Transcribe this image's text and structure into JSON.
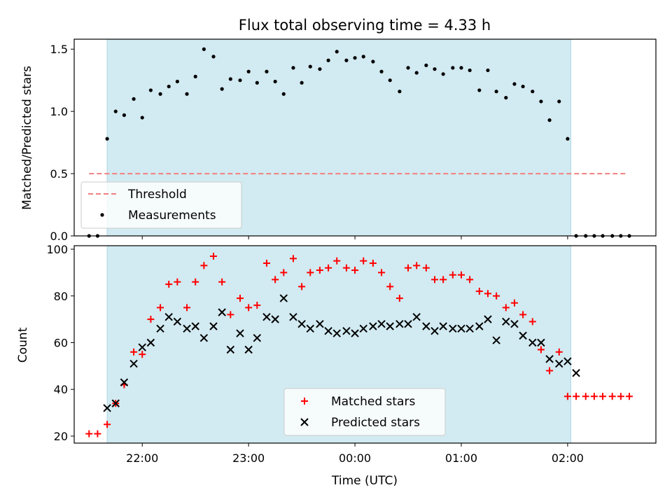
{
  "chart_data": [
    {
      "type": "scatter",
      "title": "Flux total observing time = 4.33 h",
      "xlabel": "",
      "ylabel": "Matched/Predicted stars",
      "ylim": [
        0,
        1.58
      ],
      "yticks": [
        0.0,
        0.5,
        1.0,
        1.5
      ],
      "ytick_labels": [
        "0.0",
        "0.5",
        "1.0",
        "1.5"
      ],
      "xlim": [
        -2.64,
        2.83
      ],
      "xticks": [
        -2,
        -1,
        0,
        1,
        2
      ],
      "grid": false,
      "legend_position": "lower-left",
      "observing_window": [
        -2.33,
        2.03
      ],
      "observing_window_color": "#add8e6",
      "threshold": {
        "name": "Threshold",
        "y": 0.5,
        "x_range": [
          -2.5,
          2.55
        ],
        "color": "#f08080",
        "style": "dashed"
      },
      "series": [
        {
          "name": "Measurements",
          "color": "#000000",
          "x": [
            -2.5,
            -2.42,
            -2.33,
            -2.25,
            -2.17,
            -2.08,
            -2.0,
            -1.92,
            -1.83,
            -1.75,
            -1.67,
            -1.58,
            -1.5,
            -1.42,
            -1.33,
            -1.25,
            -1.17,
            -1.08,
            -1.0,
            -0.92,
            -0.83,
            -0.75,
            -0.67,
            -0.58,
            -0.5,
            -0.42,
            -0.33,
            -0.25,
            -0.17,
            -0.08,
            0.0,
            0.08,
            0.17,
            0.25,
            0.33,
            0.42,
            0.5,
            0.58,
            0.67,
            0.75,
            0.83,
            0.92,
            1.0,
            1.08,
            1.17,
            1.25,
            1.33,
            1.42,
            1.5,
            1.58,
            1.67,
            1.75,
            1.83,
            1.92,
            2.0,
            2.08,
            2.17,
            2.25,
            2.33,
            2.42,
            2.5,
            2.58
          ],
          "y": [
            0.0,
            0.0,
            0.78,
            1.0,
            0.97,
            1.1,
            0.95,
            1.17,
            1.14,
            1.2,
            1.24,
            1.14,
            1.28,
            1.5,
            1.44,
            1.18,
            1.26,
            1.25,
            1.32,
            1.23,
            1.32,
            1.24,
            1.14,
            1.35,
            1.23,
            1.36,
            1.34,
            1.41,
            1.48,
            1.41,
            1.43,
            1.44,
            1.4,
            1.32,
            1.25,
            1.16,
            1.35,
            1.31,
            1.37,
            1.34,
            1.3,
            1.35,
            1.35,
            1.33,
            1.17,
            1.33,
            1.16,
            1.11,
            1.22,
            1.2,
            1.16,
            1.08,
            0.93,
            1.08,
            0.78,
            0.0,
            0.0,
            0.0,
            0.0,
            0.0,
            0.0,
            0.0
          ]
        }
      ]
    },
    {
      "type": "scatter",
      "title": "",
      "xlabel": "Time (UTC)",
      "ylabel": "Count",
      "ylim": [
        17,
        101.5
      ],
      "yticks": [
        20,
        40,
        60,
        80,
        100
      ],
      "ytick_labels": [
        "20",
        "40",
        "60",
        "80",
        "100"
      ],
      "xlim": [
        -2.64,
        2.83
      ],
      "xticks": [
        -2,
        -1,
        0,
        1,
        2
      ],
      "xtick_labels": [
        "22:00",
        "23:00",
        "00:00",
        "01:00",
        "02:00"
      ],
      "grid": false,
      "legend_position": "lower-center",
      "observing_window": [
        -2.33,
        2.03
      ],
      "observing_window_color": "#add8e6",
      "series": [
        {
          "name": "Matched stars",
          "marker": "plus",
          "color": "#ff0000",
          "x": [
            -2.5,
            -2.42,
            -2.33,
            -2.25,
            -2.17,
            -2.08,
            -2.0,
            -1.92,
            -1.83,
            -1.75,
            -1.67,
            -1.58,
            -1.5,
            -1.42,
            -1.33,
            -1.25,
            -1.17,
            -1.08,
            -1.0,
            -0.92,
            -0.83,
            -0.75,
            -0.67,
            -0.58,
            -0.5,
            -0.42,
            -0.33,
            -0.25,
            -0.17,
            -0.08,
            0.0,
            0.08,
            0.17,
            0.25,
            0.33,
            0.42,
            0.5,
            0.58,
            0.67,
            0.75,
            0.83,
            0.92,
            1.0,
            1.08,
            1.17,
            1.25,
            1.33,
            1.42,
            1.5,
            1.58,
            1.67,
            1.75,
            1.83,
            1.92,
            2.0,
            2.08,
            2.17,
            2.25,
            2.33,
            2.42,
            2.5,
            2.58
          ],
          "y": [
            21,
            21,
            25,
            34,
            42,
            56,
            55,
            70,
            75,
            85,
            86,
            75,
            86,
            93,
            97,
            86,
            72,
            79,
            75,
            76,
            94,
            87,
            90,
            96,
            84,
            90,
            91,
            92,
            95,
            92,
            91,
            95,
            94,
            90,
            84,
            79,
            92,
            93,
            92,
            87,
            87,
            89,
            89,
            87,
            82,
            81,
            80,
            75,
            77,
            72,
            69,
            57,
            48,
            56,
            37,
            37,
            37,
            37,
            37,
            37,
            37,
            37
          ]
        },
        {
          "name": "Predicted stars",
          "marker": "x",
          "color": "#000000",
          "x": [
            -2.33,
            -2.25,
            -2.17,
            -2.08,
            -2.0,
            -1.92,
            -1.83,
            -1.75,
            -1.67,
            -1.58,
            -1.5,
            -1.42,
            -1.33,
            -1.25,
            -1.17,
            -1.08,
            -1.0,
            -0.92,
            -0.83,
            -0.75,
            -0.67,
            -0.58,
            -0.5,
            -0.42,
            -0.33,
            -0.25,
            -0.17,
            -0.08,
            0.0,
            0.08,
            0.17,
            0.25,
            0.33,
            0.42,
            0.5,
            0.58,
            0.67,
            0.75,
            0.83,
            0.92,
            1.0,
            1.08,
            1.17,
            1.25,
            1.33,
            1.42,
            1.5,
            1.58,
            1.67,
            1.75,
            1.83,
            1.92,
            2.0,
            2.08
          ],
          "y": [
            32,
            34,
            43,
            51,
            58,
            60,
            66,
            71,
            69,
            66,
            67,
            62,
            67,
            73,
            57,
            64,
            57,
            62,
            71,
            70,
            79,
            71,
            68,
            66,
            68,
            65,
            64,
            65,
            64,
            66,
            67,
            68,
            67,
            68,
            68,
            71,
            67,
            65,
            67,
            66,
            66,
            66,
            67,
            70,
            61,
            69,
            68,
            63,
            60,
            60,
            53,
            51,
            52,
            47
          ]
        }
      ]
    }
  ]
}
